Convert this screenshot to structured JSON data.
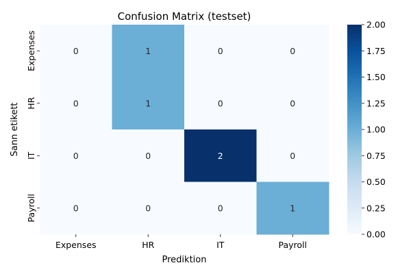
{
  "chart_data": {
    "type": "heatmap",
    "title": "Confusion Matrix (testset)",
    "xlabel": "Prediktion",
    "ylabel": "Sann etikett",
    "x_categories": [
      "Expenses",
      "HR",
      "IT",
      "Payroll"
    ],
    "y_categories": [
      "Expenses",
      "HR",
      "IT",
      "Payroll"
    ],
    "values": [
      [
        0,
        1,
        0,
        0
      ],
      [
        0,
        1,
        0,
        0
      ],
      [
        0,
        0,
        2,
        0
      ],
      [
        0,
        0,
        0,
        1
      ]
    ],
    "colormap": "Blues",
    "colormap_stops": [
      "#f7fbff",
      "#deebf7",
      "#c6dbef",
      "#9ecae1",
      "#6baed6",
      "#4292c6",
      "#2171b5",
      "#08519c",
      "#08306b"
    ],
    "vmin": 0,
    "vmax": 2,
    "colorbar_ticks": [
      "0.00",
      "0.25",
      "0.50",
      "0.75",
      "1.00",
      "1.25",
      "1.50",
      "1.75",
      "2.00"
    ],
    "grid": false,
    "legend": "colorbar-right"
  }
}
